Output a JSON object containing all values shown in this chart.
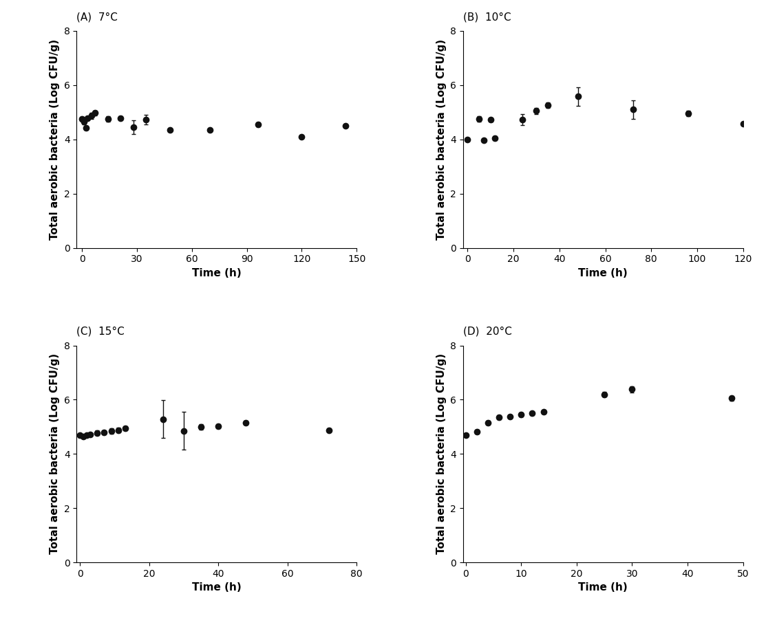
{
  "subplots": [
    {
      "title": "(A)  7°C",
      "xlabel": "Time (h)",
      "ylabel": "Total aerobic bacteria (Log CFU/g)",
      "xlim": [
        -3,
        150
      ],
      "ylim": [
        0,
        8
      ],
      "xticks": [
        0,
        30,
        60,
        90,
        120,
        150
      ],
      "yticks": [
        0,
        2,
        4,
        6,
        8
      ],
      "x": [
        0,
        1,
        2,
        3,
        5,
        7,
        14,
        21,
        28,
        35,
        48,
        70,
        96,
        120,
        144
      ],
      "y": [
        4.75,
        4.65,
        4.43,
        4.78,
        4.87,
        4.97,
        4.75,
        4.79,
        4.45,
        4.72,
        4.35,
        4.35,
        4.55,
        4.1,
        4.5
      ],
      "yerr": [
        0.08,
        0.1,
        0.07,
        0.06,
        0.12,
        0.08,
        0.1,
        0.07,
        0.25,
        0.18,
        0.05,
        0.05,
        0.07,
        0.05,
        0.06
      ]
    },
    {
      "title": "(B)  10°C",
      "xlabel": "Time (h)",
      "ylabel": "Total aerobic bacteria (Log CFU/g)",
      "xlim": [
        -2,
        120
      ],
      "ylim": [
        0,
        8
      ],
      "xticks": [
        0,
        20,
        40,
        60,
        80,
        100,
        120
      ],
      "yticks": [
        0,
        2,
        4,
        6,
        8
      ],
      "x": [
        0,
        5,
        7,
        10,
        12,
        24,
        30,
        35,
        48,
        72,
        96,
        120
      ],
      "y": [
        4.0,
        4.75,
        3.98,
        4.72,
        4.05,
        4.72,
        5.05,
        5.25,
        5.58,
        5.1,
        4.95,
        4.57
      ],
      "yerr": [
        0.05,
        0.1,
        0.05,
        0.07,
        0.08,
        0.2,
        0.12,
        0.1,
        0.35,
        0.35,
        0.1,
        0.05
      ]
    },
    {
      "title": "(C)  15°C",
      "xlabel": "Time (h)",
      "ylabel": "Total aerobic bacteria (Log CFU/g)",
      "xlim": [
        -1,
        80
      ],
      "ylim": [
        0,
        8
      ],
      "xticks": [
        0,
        20,
        40,
        60,
        80
      ],
      "yticks": [
        0,
        2,
        4,
        6,
        8
      ],
      "x": [
        0,
        1,
        2,
        3,
        5,
        7,
        9,
        11,
        13,
        24,
        30,
        35,
        40,
        48,
        72
      ],
      "y": [
        4.68,
        4.65,
        4.7,
        4.72,
        4.78,
        4.8,
        4.85,
        4.88,
        4.95,
        5.28,
        4.85,
        5.0,
        5.03,
        5.15,
        4.88
      ],
      "yerr": [
        0.07,
        0.05,
        0.06,
        0.06,
        0.08,
        0.08,
        0.1,
        0.08,
        0.08,
        0.7,
        0.7,
        0.1,
        0.08,
        0.08,
        0.06
      ]
    },
    {
      "title": "(D)  20°C",
      "xlabel": "Time (h)",
      "ylabel": "Total aerobic bacteria (Log CFU/g)",
      "xlim": [
        -0.5,
        50
      ],
      "ylim": [
        0,
        8
      ],
      "xticks": [
        0,
        10,
        20,
        30,
        40,
        50
      ],
      "yticks": [
        0,
        2,
        4,
        6,
        8
      ],
      "x": [
        0,
        2,
        4,
        6,
        8,
        10,
        12,
        14,
        25,
        30,
        48
      ],
      "y": [
        4.7,
        4.82,
        5.15,
        5.35,
        5.38,
        5.45,
        5.5,
        5.55,
        6.2,
        6.38,
        6.05
      ],
      "yerr": [
        0.05,
        0.08,
        0.08,
        0.07,
        0.06,
        0.08,
        0.06,
        0.06,
        0.1,
        0.12,
        0.08
      ]
    }
  ],
  "marker": "o",
  "markersize": 6,
  "markerfacecolor": "#111111",
  "markeredgecolor": "#111111",
  "linecolor": "#111111",
  "linewidth": 1.0,
  "ecolor": "#111111",
  "capsize": 2.5,
  "elinewidth": 1.0,
  "background_color": "#ffffff",
  "title_fontsize": 11,
  "label_fontsize": 11,
  "tick_fontsize": 10
}
